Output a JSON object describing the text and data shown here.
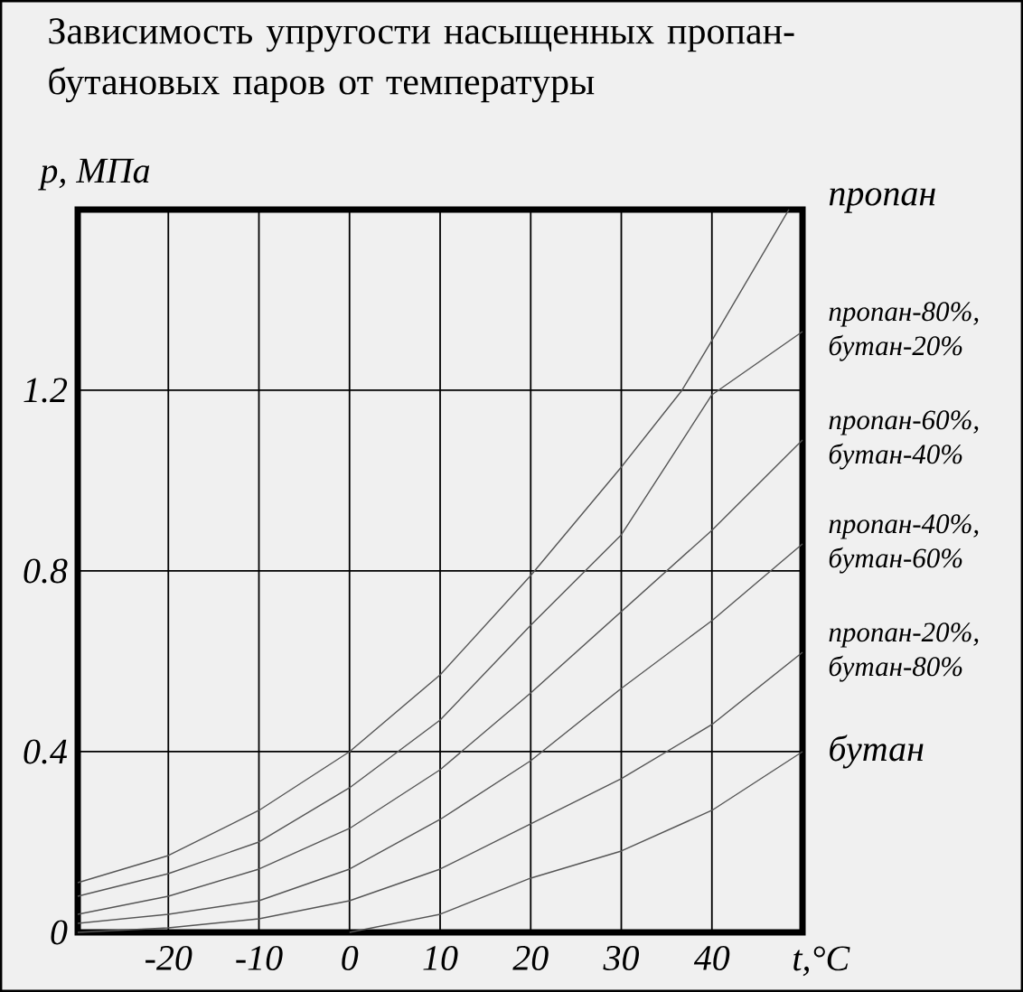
{
  "chart_data": {
    "type": "line",
    "title": "Зависимость упругости насыщенных пропан-бутановых паров от температуры",
    "xlabel": "t,°C",
    "ylabel": "p, МПа",
    "xlim": [
      -30,
      50
    ],
    "ylim": [
      0,
      1.6
    ],
    "xticks": [
      -20,
      -10,
      0,
      10,
      20,
      30,
      40
    ],
    "yticks": [
      0,
      0.4,
      0.8,
      1.2
    ],
    "grid": true,
    "marker": "none",
    "line_style": "solid",
    "series": [
      {
        "name": "пропан",
        "color": "#555555",
        "x": [
          -30,
          -20,
          -10,
          0,
          10,
          20,
          30,
          36.7,
          40,
          48.5
        ],
        "values": [
          0.11,
          0.17,
          0.27,
          0.4,
          0.57,
          0.79,
          1.03,
          1.2,
          1.31,
          1.6
        ]
      },
      {
        "name": "пропан-80%, бутан-20%",
        "color": "#555555",
        "x": [
          -30,
          -20,
          -10,
          0,
          10,
          20,
          30,
          40,
          50
        ],
        "values": [
          0.08,
          0.13,
          0.2,
          0.32,
          0.47,
          0.68,
          0.88,
          1.19,
          1.33
        ]
      },
      {
        "name": "пропан-60%, бутан-40%",
        "color": "#555555",
        "x": [
          -30,
          -20,
          -10,
          0,
          10,
          20,
          30,
          40,
          50
        ],
        "values": [
          0.04,
          0.08,
          0.14,
          0.23,
          0.36,
          0.53,
          0.71,
          0.89,
          1.09
        ]
      },
      {
        "name": "пропан-40%, бутан-60%",
        "color": "#555555",
        "x": [
          -30,
          -20,
          -10,
          0,
          10,
          20,
          30,
          40,
          50
        ],
        "values": [
          0.02,
          0.04,
          0.07,
          0.14,
          0.25,
          0.38,
          0.54,
          0.69,
          0.86
        ]
      },
      {
        "name": "пропан-20%, бутан-80%",
        "color": "#555555",
        "x": [
          -30,
          -20,
          -10,
          0,
          10,
          20,
          30,
          40,
          50
        ],
        "values": [
          0.0,
          0.01,
          0.03,
          0.07,
          0.14,
          0.24,
          0.34,
          0.46,
          0.62
        ]
      },
      {
        "name": "бутан",
        "color": "#555555",
        "x": [
          0,
          10,
          20,
          30,
          40,
          50
        ],
        "values": [
          0.0,
          0.04,
          0.12,
          0.18,
          0.27,
          0.4
        ]
      }
    ]
  }
}
